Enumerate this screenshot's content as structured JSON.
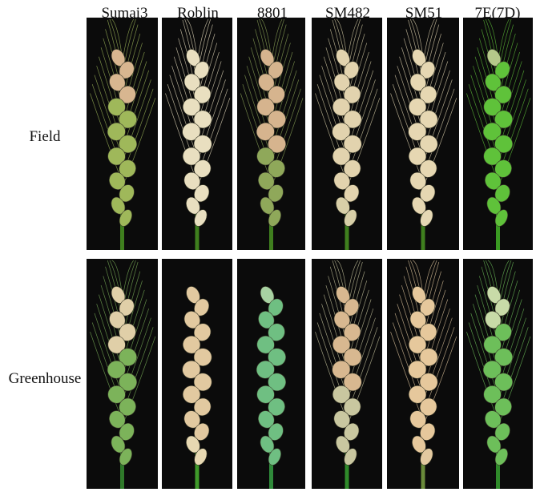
{
  "columns": [
    "Sumai3",
    "Roblin",
    "8801",
    "SM482",
    "SM51",
    "7E(7D)"
  ],
  "rows": [
    "Field",
    "Greenhouse"
  ],
  "panels": [
    {
      "row": "Field",
      "column": "Sumai3",
      "head_color": "#9fb85a",
      "blight_color": "#d8b690",
      "blight_fraction": 0.25,
      "stem_color": "#3f7f1e",
      "awns": true
    },
    {
      "row": "Field",
      "column": "Roblin",
      "head_color": "#e9dfc0",
      "blight_color": "#e9dfc0",
      "blight_fraction": 1.0,
      "stem_color": "#3f7f1e",
      "awns": true
    },
    {
      "row": "Field",
      "column": "8801",
      "head_color": "#8fa85a",
      "blight_color": "#d6b48e",
      "blight_fraction": 0.55,
      "stem_color": "#3f7f1e",
      "awns": true
    },
    {
      "row": "Field",
      "column": "SM482",
      "head_color": "#d8cfa8",
      "blight_color": "#e2d3ae",
      "blight_fraction": 0.85,
      "stem_color": "#3f7f1e",
      "awns": true
    },
    {
      "row": "Field",
      "column": "SM51",
      "head_color": "#e5d8b4",
      "blight_color": "#e6d7b2",
      "blight_fraction": 0.95,
      "stem_color": "#3f7f1e",
      "awns": true
    },
    {
      "row": "Field",
      "column": "7E(7D)",
      "head_color": "#5fc23a",
      "blight_color": "#b5c98a",
      "blight_fraction": 0.1,
      "stem_color": "#3a9a22",
      "awns": true
    },
    {
      "row": "Greenhouse",
      "column": "Sumai3",
      "head_color": "#7cb35a",
      "blight_color": "#e0cfa8",
      "blight_fraction": 0.35,
      "stem_color": "#2f7a2a",
      "awns": true
    },
    {
      "row": "Greenhouse",
      "column": "Roblin",
      "head_color": "#e7d8b2",
      "blight_color": "#e2c9a0",
      "blight_fraction": 0.85,
      "stem_color": "#3f9a2a",
      "awns": false
    },
    {
      "row": "Greenhouse",
      "column": "8801",
      "head_color": "#6fbf82",
      "blight_color": "#a8d2a2",
      "blight_fraction": 0.1,
      "stem_color": "#2f8a3a",
      "awns": false
    },
    {
      "row": "Greenhouse",
      "column": "SM482",
      "head_color": "#c9c7a0",
      "blight_color": "#d8b890",
      "blight_fraction": 0.6,
      "stem_color": "#2f8a2a",
      "awns": true
    },
    {
      "row": "Greenhouse",
      "column": "SM51",
      "head_color": "#e3c9a0",
      "blight_color": "#e6c89c",
      "blight_fraction": 0.9,
      "stem_color": "#6a8a3a",
      "awns": true
    },
    {
      "row": "Greenhouse",
      "column": "7E(7D)",
      "head_color": "#6dbf5a",
      "blight_color": "#c8dba8",
      "blight_fraction": 0.2,
      "stem_color": "#2f8a2a",
      "awns": true
    }
  ]
}
